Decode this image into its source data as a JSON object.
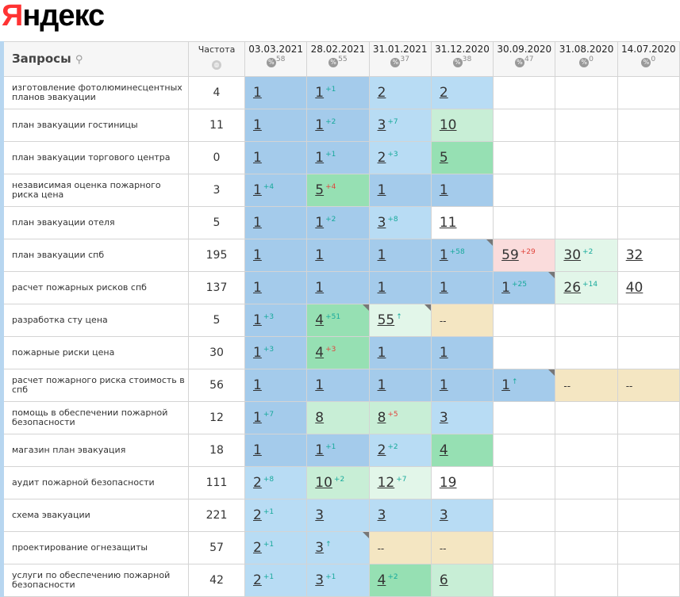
{
  "logo": "Яндекс",
  "header": {
    "query": "Запросы",
    "frequency": "Частота",
    "dates": [
      {
        "date": "03.03.2021",
        "percent": 58
      },
      {
        "date": "28.02.2021",
        "percent": 55
      },
      {
        "date": "31.01.2021",
        "percent": 37
      },
      {
        "date": "31.12.2020",
        "percent": 38
      },
      {
        "date": "30.09.2020",
        "percent": 47
      },
      {
        "date": "31.08.2020",
        "percent": 0
      },
      {
        "date": "14.07.2020",
        "percent": 0
      }
    ]
  },
  "rows": [
    {
      "query": "изготовление фотолюминесцентных планов эвакуации",
      "frequency": 4,
      "cells": [
        {
          "pos": 1,
          "color": "#a4cbeb"
        },
        {
          "pos": 1,
          "change": "+1",
          "change_color": "#17a99b",
          "color": "#a4cbeb"
        },
        {
          "pos": 2,
          "color": "#b8dcf4"
        },
        {
          "pos": 2,
          "color": "#b8dcf4"
        },
        null,
        null,
        null
      ]
    },
    {
      "query": "план эвакуации гостиницы",
      "frequency": 11,
      "cells": [
        {
          "pos": 1,
          "color": "#a4cbeb"
        },
        {
          "pos": 1,
          "change": "+2",
          "change_color": "#17a99b",
          "color": "#a4cbeb"
        },
        {
          "pos": 3,
          "change": "+7",
          "change_color": "#17a99b",
          "color": "#b8dcf4"
        },
        {
          "pos": 10,
          "color": "#c8eed6"
        },
        null,
        null,
        null
      ]
    },
    {
      "query": "план эвакуации торгового центра",
      "frequency": 0,
      "cells": [
        {
          "pos": 1,
          "color": "#a4cbeb"
        },
        {
          "pos": 1,
          "change": "+1",
          "change_color": "#17a99b",
          "color": "#a4cbeb"
        },
        {
          "pos": 2,
          "change": "+3",
          "change_color": "#17a99b",
          "color": "#b8dcf4"
        },
        {
          "pos": 5,
          "color": "#96e0b3"
        },
        null,
        null,
        null
      ]
    },
    {
      "query": "независимая оценка пожарного риска цена",
      "frequency": 3,
      "cells": [
        {
          "pos": 1,
          "change": "+4",
          "change_color": "#17a99b",
          "color": "#a4cbeb"
        },
        {
          "pos": 5,
          "change": "+4",
          "change_color": "#e0443c",
          "color": "#96e0b3"
        },
        {
          "pos": 1,
          "color": "#a4cbeb"
        },
        {
          "pos": 1,
          "color": "#a4cbeb"
        },
        null,
        null,
        null
      ]
    },
    {
      "query": "план эвакуации отеля",
      "frequency": 5,
      "cells": [
        {
          "pos": 1,
          "color": "#a4cbeb"
        },
        {
          "pos": 1,
          "change": "+2",
          "change_color": "#17a99b",
          "color": "#a4cbeb"
        },
        {
          "pos": 3,
          "change": "+8",
          "change_color": "#17a99b",
          "color": "#b8dcf4"
        },
        {
          "pos": 11,
          "color": "#ffffff"
        },
        null,
        null,
        null
      ]
    },
    {
      "query": "план эвакуации спб",
      "frequency": 195,
      "cells": [
        {
          "pos": 1,
          "color": "#a4cbeb"
        },
        {
          "pos": 1,
          "color": "#a4cbeb"
        },
        {
          "pos": 1,
          "color": "#a4cbeb"
        },
        {
          "pos": 1,
          "change": "+58",
          "change_color": "#17a99b",
          "color": "#a4cbeb",
          "flag": true
        },
        {
          "pos": 59,
          "change": "+29",
          "change_color": "#e0443c",
          "color": "#fadcdc"
        },
        {
          "pos": 30,
          "change": "+2",
          "change_color": "#17a99b",
          "color": "#e2f6e9"
        },
        {
          "pos": 32,
          "color": "#ffffff"
        }
      ]
    },
    {
      "query": "расчет пожарных рисков спб",
      "frequency": 137,
      "cells": [
        {
          "pos": 1,
          "color": "#a4cbeb"
        },
        {
          "pos": 1,
          "color": "#a4cbeb"
        },
        {
          "pos": 1,
          "color": "#a4cbeb"
        },
        {
          "pos": 1,
          "color": "#a4cbeb"
        },
        {
          "pos": 1,
          "change": "+25",
          "change_color": "#17a99b",
          "color": "#a4cbeb",
          "flag": true
        },
        {
          "pos": 26,
          "change": "+14",
          "change_color": "#17a99b",
          "color": "#e2f6e9"
        },
        {
          "pos": 40,
          "color": "#ffffff"
        }
      ]
    },
    {
      "query": "разработка сту цена",
      "frequency": 5,
      "cells": [
        {
          "pos": 1,
          "change": "+3",
          "change_color": "#17a99b",
          "color": "#a4cbeb"
        },
        {
          "pos": 4,
          "change": "+51",
          "change_color": "#17a99b",
          "color": "#96e0b3",
          "flag": true
        },
        {
          "pos": 55,
          "change": "↑",
          "change_color": "#17a99b",
          "color": "#e2f6e9",
          "flag": true
        },
        {
          "pos": "--",
          "color": "#f4e6c2"
        },
        null,
        null,
        null
      ]
    },
    {
      "query": "пожарные риски цена",
      "frequency": 30,
      "cells": [
        {
          "pos": 1,
          "change": "+3",
          "change_color": "#17a99b",
          "color": "#a4cbeb"
        },
        {
          "pos": 4,
          "change": "+3",
          "change_color": "#e0443c",
          "color": "#96e0b3"
        },
        {
          "pos": 1,
          "color": "#a4cbeb"
        },
        {
          "pos": 1,
          "color": "#a4cbeb"
        },
        null,
        null,
        null
      ]
    },
    {
      "query": "расчет пожарного риска стоимость в спб",
      "frequency": 56,
      "cells": [
        {
          "pos": 1,
          "color": "#a4cbeb"
        },
        {
          "pos": 1,
          "color": "#a4cbeb"
        },
        {
          "pos": 1,
          "color": "#a4cbeb"
        },
        {
          "pos": 1,
          "color": "#a4cbeb"
        },
        {
          "pos": 1,
          "change": "↑",
          "change_color": "#17a99b",
          "color": "#a4cbeb",
          "flag": true
        },
        {
          "pos": "--",
          "color": "#f4e6c2"
        },
        {
          "pos": "--",
          "color": "#f4e6c2"
        }
      ]
    },
    {
      "query": "помощь в обеспечении пожарной безопасности",
      "frequency": 12,
      "cells": [
        {
          "pos": 1,
          "change": "+7",
          "change_color": "#17a99b",
          "color": "#a4cbeb"
        },
        {
          "pos": 8,
          "color": "#c8eed6"
        },
        {
          "pos": 8,
          "change": "+5",
          "change_color": "#e0443c",
          "color": "#c8eed6"
        },
        {
          "pos": 3,
          "color": "#b8dcf4"
        },
        null,
        null,
        null
      ]
    },
    {
      "query": "магазин план эвакуация",
      "frequency": 18,
      "cells": [
        {
          "pos": 1,
          "color": "#a4cbeb"
        },
        {
          "pos": 1,
          "change": "+1",
          "change_color": "#17a99b",
          "color": "#a4cbeb"
        },
        {
          "pos": 2,
          "change": "+2",
          "change_color": "#17a99b",
          "color": "#b8dcf4"
        },
        {
          "pos": 4,
          "color": "#96e0b3"
        },
        null,
        null,
        null
      ]
    },
    {
      "query": "аудит пожарной безопасности",
      "frequency": 111,
      "cells": [
        {
          "pos": 2,
          "change": "+8",
          "change_color": "#17a99b",
          "color": "#b8dcf4"
        },
        {
          "pos": 10,
          "change": "+2",
          "change_color": "#17a99b",
          "color": "#c8eed6"
        },
        {
          "pos": 12,
          "change": "+7",
          "change_color": "#17a99b",
          "color": "#e2f6e9"
        },
        {
          "pos": 19,
          "color": "#ffffff"
        },
        null,
        null,
        null
      ]
    },
    {
      "query": "схема эвакуации",
      "frequency": 221,
      "cells": [
        {
          "pos": 2,
          "change": "+1",
          "change_color": "#17a99b",
          "color": "#b8dcf4"
        },
        {
          "pos": 3,
          "color": "#b8dcf4"
        },
        {
          "pos": 3,
          "color": "#b8dcf4"
        },
        {
          "pos": 3,
          "color": "#b8dcf4"
        },
        null,
        null,
        null
      ]
    },
    {
      "query": "проектирование огнезащиты",
      "frequency": 57,
      "cells": [
        {
          "pos": 2,
          "change": "+1",
          "change_color": "#17a99b",
          "color": "#b8dcf4"
        },
        {
          "pos": 3,
          "change": "↑",
          "change_color": "#17a99b",
          "color": "#b8dcf4",
          "flag": true
        },
        {
          "pos": "--",
          "color": "#f4e6c2"
        },
        {
          "pos": "--",
          "color": "#f4e6c2"
        },
        null,
        null,
        null
      ]
    },
    {
      "query": "услуги по обеспечению пожарной безопасности",
      "frequency": 42,
      "cells": [
        {
          "pos": 2,
          "change": "+1",
          "change_color": "#17a99b",
          "color": "#b8dcf4"
        },
        {
          "pos": 3,
          "change": "+1",
          "change_color": "#17a99b",
          "color": "#b8dcf4"
        },
        {
          "pos": 4,
          "change": "+2",
          "change_color": "#17a99b",
          "color": "#96e0b3"
        },
        {
          "pos": 6,
          "color": "#c8eed6"
        },
        null,
        null,
        null
      ]
    }
  ]
}
